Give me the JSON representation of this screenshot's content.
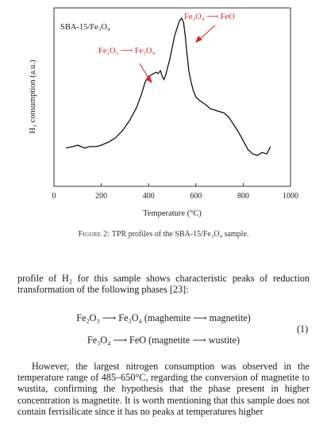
{
  "chart_data": {
    "type": "line",
    "inner_label": "SBA-15/Fe₃O₄",
    "xlabel": "Temperature (°C)",
    "ylabel": "H₂ consumption (a.u.)",
    "xlim": [
      0,
      1000
    ],
    "xticks": [
      0,
      200,
      400,
      600,
      800,
      1000
    ],
    "ylim": [
      0,
      1
    ],
    "series": [
      {
        "x": [
          50,
          80,
          100,
          115,
          130,
          150,
          180,
          200,
          230,
          260,
          290,
          320,
          350,
          370,
          385,
          398,
          410,
          420,
          432,
          440,
          450,
          458,
          465,
          472,
          480,
          490,
          500,
          510,
          520,
          530,
          540,
          548,
          555,
          562,
          570,
          580,
          590,
          600,
          620,
          640,
          660,
          680,
          700,
          720,
          740,
          760,
          780,
          800,
          820,
          840,
          860,
          880,
          900,
          915
        ],
        "y": [
          0.11,
          0.12,
          0.13,
          0.12,
          0.11,
          0.12,
          0.12,
          0.13,
          0.15,
          0.18,
          0.23,
          0.3,
          0.39,
          0.48,
          0.56,
          0.6,
          0.61,
          0.62,
          0.63,
          0.62,
          0.64,
          0.6,
          0.58,
          0.61,
          0.66,
          0.72,
          0.8,
          0.88,
          0.93,
          0.98,
          1.0,
          0.97,
          0.88,
          0.76,
          0.64,
          0.56,
          0.5,
          0.46,
          0.43,
          0.41,
          0.38,
          0.37,
          0.36,
          0.35,
          0.32,
          0.27,
          0.22,
          0.16,
          0.1,
          0.07,
          0.06,
          0.08,
          0.07,
          0.12
        ]
      }
    ],
    "annotations": [
      {
        "from": "Fe₂O₃",
        "to": "Fe₃O₄",
        "color": "#d62728"
      },
      {
        "from": "Fe₃O₄",
        "to": "FeO",
        "color": "#d62728"
      }
    ]
  },
  "caption": {
    "label": "Figure 2:",
    "text": "TPR profiles of the SBA-15/Fe₃O₄ sample."
  },
  "paragraph1": "profile of H₂ for this sample shows characteristic peaks of reduction transformation of the following phases [23]:",
  "equation": {
    "line1": "Fe₂O₃ ⟶ Fe₃O₄ (maghemite ⟶ magnetite)",
    "line2": "Fe₃O₄ ⟶ FeO (magnetite ⟶ wustite)",
    "number": "(1)"
  },
  "paragraph2": "However, the largest nitrogen consumption was observed in the temperature range of 485–650°C, regarding the conversion of magnetite to wustita, confirming the hypothesis that the phase present in higher concentration is magnetite. It is worth mentioning that this sample does not contain ferrisilicate since it has no peaks at temperatures higher"
}
